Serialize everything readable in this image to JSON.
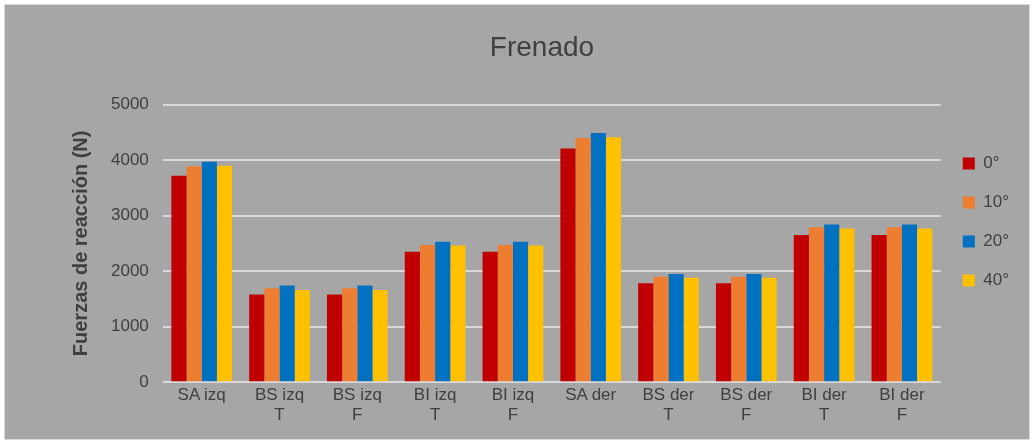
{
  "chart_data": {
    "type": "bar",
    "title": "Frenado",
    "ylabel": "Fuerzas de reacción (N)",
    "categories": [
      "SA izq",
      "BS izq T",
      "BS izq F",
      "BI izq T",
      "BI izq F",
      "SA der",
      "BS der T",
      "BS der F",
      "BI der T",
      "BI der F"
    ],
    "series": [
      {
        "name": "0°",
        "color": "#c00000",
        "values": [
          3720,
          1580,
          1580,
          2350,
          2350,
          4210,
          1780,
          1780,
          2650,
          2650
        ]
      },
      {
        "name": "10°",
        "color": "#ed7d31",
        "values": [
          3890,
          1690,
          1690,
          2470,
          2470,
          4400,
          1900,
          1900,
          2790,
          2790
        ]
      },
      {
        "name": "20°",
        "color": "#0070c0",
        "values": [
          3970,
          1740,
          1740,
          2530,
          2530,
          4490,
          1950,
          1950,
          2840,
          2840
        ]
      },
      {
        "name": "40°",
        "color": "#ffc000",
        "values": [
          3900,
          1660,
          1660,
          2460,
          2460,
          4410,
          1880,
          1880,
          2770,
          2770
        ]
      }
    ],
    "ylim": [
      0,
      5000
    ],
    "yticks": [
      0,
      1000,
      2000,
      3000,
      4000,
      5000
    ],
    "grid": "y",
    "legend": "right"
  }
}
